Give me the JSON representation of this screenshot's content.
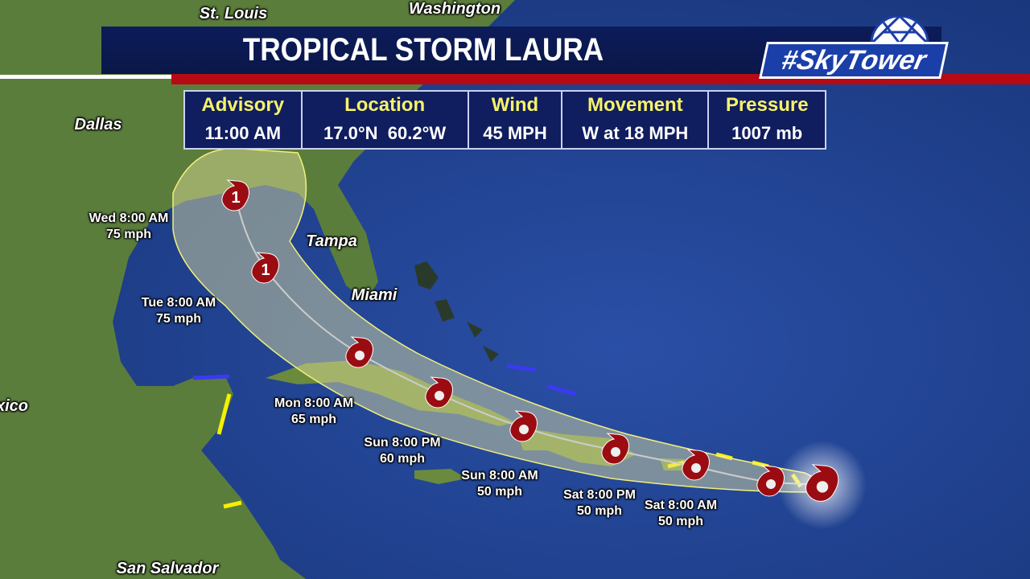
{
  "header": {
    "title": "TROPICAL STORM LAURA",
    "logo_text": "#SkyTower"
  },
  "info_table": {
    "columns": [
      {
        "label": "Advisory",
        "value": "11:00 AM"
      },
      {
        "label": "Location",
        "value": "17.0°N  60.2°W"
      },
      {
        "label": "Wind",
        "value": "45 MPH"
      },
      {
        "label": "Movement",
        "value": "W at 18 MPH"
      },
      {
        "label": "Pressure",
        "value": "1007 mb"
      }
    ]
  },
  "cities": [
    "St. Louis",
    "Washington",
    "Dallas",
    "Tampa",
    "Miami",
    "xico",
    "San Salvador"
  ],
  "forecast_points": [
    {
      "time": "Wed 8:00 AM",
      "wind": "75 mph"
    },
    {
      "time": "Tue 8:00 AM",
      "wind": "75 mph"
    },
    {
      "time": "Mon 8:00 AM",
      "wind": "65 mph"
    },
    {
      "time": "Sun 8:00 PM",
      "wind": "60 mph"
    },
    {
      "time": "Sun 8:00 AM",
      "wind": "50 mph"
    },
    {
      "time": "Sat 8:00 PM",
      "wind": "50 mph"
    },
    {
      "time": "Sat 8:00 AM",
      "wind": "50 mph"
    }
  ],
  "storm_icons": [
    {
      "type": "hurricane",
      "category": "1"
    },
    {
      "type": "hurricane",
      "category": "1"
    },
    {
      "type": "tropical-storm"
    },
    {
      "type": "tropical-storm"
    },
    {
      "type": "tropical-storm"
    },
    {
      "type": "tropical-storm"
    },
    {
      "type": "tropical-storm"
    },
    {
      "type": "tropical-storm"
    },
    {
      "type": "tropical-storm",
      "current": true
    }
  ],
  "colors": {
    "title_bg": "#0c1c5a",
    "accent_red": "#b80a14",
    "table_header": "#f6f26a",
    "cone": "#f2f07a",
    "storm_icon": "#9a0c12",
    "watch_warning_yellow": "#f5f000",
    "watch_warning_blue": "#3a3af0"
  }
}
